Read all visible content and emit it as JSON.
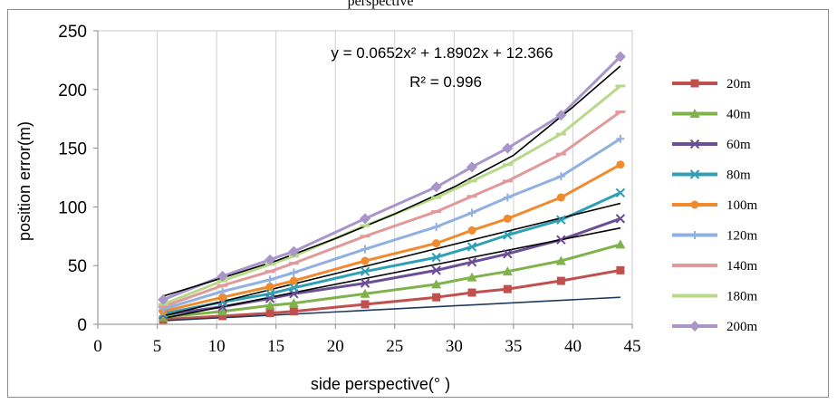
{
  "caption_fragment": "perspective",
  "chart_data": {
    "type": "line",
    "title": "",
    "xlabel": "side perspective(°  )",
    "ylabel": "position error(m)",
    "xlim": [
      0,
      45
    ],
    "ylim": [
      0,
      250
    ],
    "xticks": [
      0,
      5,
      10,
      15,
      20,
      25,
      30,
      35,
      40,
      45
    ],
    "yticks": [
      0,
      50,
      100,
      150,
      200,
      250
    ],
    "grid": "vertical",
    "legend_position": "right",
    "annotation": {
      "equation": "y = 0.0652x² + 1.8902x + 12.366",
      "r2": "R² = 0.996"
    },
    "x": [
      5.5,
      10.5,
      14.5,
      16.5,
      22.5,
      28.5,
      31.5,
      34.5,
      39,
      44
    ],
    "series": [
      {
        "name": "20m",
        "color": "#c0504d",
        "marker": "square",
        "values": [
          4,
          7,
          9.5,
          11,
          17,
          23,
          27,
          30,
          37,
          46
        ]
      },
      {
        "name": "40m",
        "color": "#7fb24b",
        "marker": "triangle",
        "values": [
          6,
          11,
          16,
          18,
          26,
          34,
          40,
          45,
          54,
          68
        ]
      },
      {
        "name": "60m",
        "color": "#6b4f96",
        "marker": "cross",
        "values": [
          8,
          15,
          22,
          26,
          35,
          46,
          53,
          60,
          72,
          90
        ]
      },
      {
        "name": "80m",
        "color": "#2f9fb5",
        "marker": "cross",
        "values": [
          9,
          19,
          26,
          31,
          45,
          57,
          66,
          76,
          89,
          112
        ]
      },
      {
        "name": "100m",
        "color": "#f08a2c",
        "marker": "circle",
        "values": [
          11,
          23,
          32,
          37,
          54,
          69,
          80,
          90,
          108,
          136
        ]
      },
      {
        "name": "120m",
        "color": "#8fb0e0",
        "marker": "plus",
        "values": [
          13,
          28,
          38,
          44,
          64,
          83,
          95,
          108,
          126,
          158
        ]
      },
      {
        "name": "140m",
        "color": "#e09a9a",
        "marker": "dash",
        "values": [
          15,
          33,
          45,
          52,
          75,
          96,
          109,
          122,
          145,
          181
        ]
      },
      {
        "name": "180m",
        "color": "#b8d98a",
        "marker": "dash",
        "values": [
          17,
          37,
          51,
          58,
          84,
          108,
          122,
          136,
          162,
          203
        ]
      },
      {
        "name": "200m",
        "color": "#a896c8",
        "marker": "diamond",
        "values": [
          21,
          41,
          55,
          62,
          90,
          117,
          134,
          150,
          178,
          228
        ]
      }
    ],
    "trendlines": [
      {
        "color": "#1f3a5f",
        "points": [
          [
            5.5,
            3
          ],
          [
            44,
            23
          ]
        ]
      },
      {
        "color": "#000000",
        "points": [
          [
            5.5,
            5
          ],
          [
            44,
            82
          ]
        ]
      },
      {
        "color": "#000000",
        "points": [
          [
            5.5,
            7
          ],
          [
            44,
            103
          ]
        ]
      },
      {
        "color": "#000000",
        "points": [
          [
            5.5,
            24
          ],
          [
            10,
            38
          ],
          [
            15,
            54
          ],
          [
            20,
            73
          ],
          [
            25,
            94
          ],
          [
            30,
            117
          ],
          [
            35,
            144
          ],
          [
            40,
            185
          ],
          [
            44,
            220
          ]
        ]
      }
    ]
  }
}
